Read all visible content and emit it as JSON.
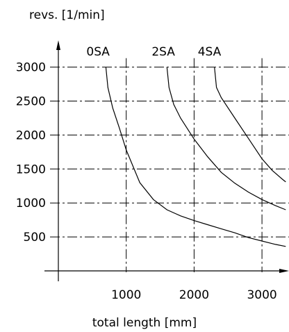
{
  "chart_data": {
    "type": "line",
    "ylabel": "revs. [1/min]",
    "xlabel": "total length [mm]",
    "xlim": [
      0,
      3300
    ],
    "ylim": [
      0,
      3050
    ],
    "x_ticks": [
      {
        "value": 1000,
        "label": "1000"
      },
      {
        "value": 2000,
        "label": "2000"
      },
      {
        "value": 3000,
        "label": "3000"
      }
    ],
    "y_ticks": [
      {
        "value": 500,
        "label": "500"
      },
      {
        "value": 1000,
        "label": "1000"
      },
      {
        "value": 1500,
        "label": "1500"
      },
      {
        "value": 2000,
        "label": "2000"
      },
      {
        "value": 2500,
        "label": "2500"
      },
      {
        "value": 3000,
        "label": "3000"
      }
    ],
    "grid": true,
    "series": [
      {
        "name": "0SA",
        "points": [
          [
            700,
            3000
          ],
          [
            730,
            2700
          ],
          [
            800,
            2400
          ],
          [
            900,
            2100
          ],
          [
            1000,
            1780
          ],
          [
            1200,
            1300
          ],
          [
            1400,
            1050
          ],
          [
            1600,
            900
          ],
          [
            1800,
            810
          ],
          [
            2000,
            740
          ],
          [
            2200,
            680
          ],
          [
            2400,
            620
          ],
          [
            2600,
            560
          ],
          [
            2800,
            490
          ],
          [
            3000,
            440
          ],
          [
            3200,
            390
          ],
          [
            3350,
            360
          ]
        ]
      },
      {
        "name": "2SA",
        "points": [
          [
            1600,
            3000
          ],
          [
            1630,
            2700
          ],
          [
            1700,
            2450
          ],
          [
            1800,
            2250
          ],
          [
            2000,
            1940
          ],
          [
            2200,
            1680
          ],
          [
            2400,
            1450
          ],
          [
            2600,
            1290
          ],
          [
            2800,
            1160
          ],
          [
            3000,
            1050
          ],
          [
            3200,
            960
          ],
          [
            3350,
            900
          ]
        ]
      },
      {
        "name": "4SA",
        "points": [
          [
            2300,
            3000
          ],
          [
            2330,
            2700
          ],
          [
            2400,
            2550
          ],
          [
            2600,
            2250
          ],
          [
            2800,
            1950
          ],
          [
            3000,
            1650
          ],
          [
            3150,
            1480
          ],
          [
            3300,
            1350
          ],
          [
            3350,
            1310
          ]
        ]
      }
    ]
  }
}
